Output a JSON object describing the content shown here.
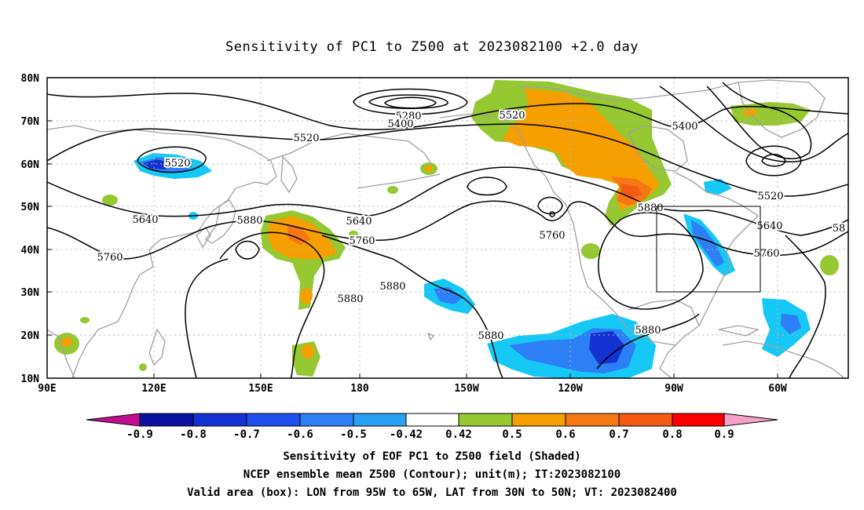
{
  "title": "Sensitivity of PC1 to Z500 at 2023082100 +2.0 day",
  "lat_labels": [
    "80N",
    "70N",
    "60N",
    "50N",
    "40N",
    "30N",
    "20N",
    "10N"
  ],
  "lon_labels": [
    "90E",
    "120E",
    "150E",
    "180",
    "150W",
    "120W",
    "90W",
    "60W"
  ],
  "contour_labels": [
    {
      "id": "c5280",
      "text": "5280"
    },
    {
      "id": "c5400a",
      "text": "5400"
    },
    {
      "id": "c5520a",
      "text": "5520"
    },
    {
      "id": "c5520b",
      "text": "5520"
    },
    {
      "id": "c5520c",
      "text": "5520"
    },
    {
      "id": "c5400b",
      "text": "5400"
    },
    {
      "id": "c5520d",
      "text": "5520"
    },
    {
      "id": "c5640a",
      "text": "5640"
    },
    {
      "id": "c5640b",
      "text": "5640"
    },
    {
      "id": "c5640c",
      "text": "5640"
    },
    {
      "id": "c5760a",
      "text": "5760"
    },
    {
      "id": "c5760b",
      "text": "5760"
    },
    {
      "id": "c5760c",
      "text": "5760"
    },
    {
      "id": "c5760d",
      "text": "5760"
    },
    {
      "id": "c5880a",
      "text": "5880"
    },
    {
      "id": "c5880b",
      "text": "5880"
    },
    {
      "id": "c5880c",
      "text": "5880"
    },
    {
      "id": "c5880d",
      "text": "5880"
    },
    {
      "id": "c5880e",
      "text": "5880"
    },
    {
      "id": "c5880f",
      "text": "5880"
    },
    {
      "id": "c58e",
      "text": "58"
    }
  ],
  "colorbar": {
    "labels": [
      "-0.9",
      "-0.8",
      "-0.7",
      "-0.6",
      "-0.5",
      "-0.42",
      "0.42",
      "0.5",
      "0.6",
      "0.7",
      "0.8",
      "0.9"
    ],
    "colors": {
      "lt_min": "#c0108f",
      "b1": "#0a10a0",
      "b2": "#1432d2",
      "b3": "#1e50f0",
      "b4": "#2d7ff5",
      "b5": "#2aa0f5",
      "b6": "#15c8f5",
      "white": "#ffffff",
      "r1": "#96c832",
      "r2": "#f5a000",
      "r3": "#f57814",
      "r4": "#f55a14",
      "r5": "#f52814",
      "r6": "#fa0000",
      "gt_max": "#f5a0c8"
    }
  },
  "caption": {
    "line1": "Sensitivity of EOF PC1 to Z500 field (Shaded)",
    "line2": "NCEP ensemble mean Z500 (Contour); unit(m); IT:2023082100",
    "line3": "Valid area (box): LON from 95W to 65W, LAT from 30N to 50N; VT: 2023082400"
  }
}
